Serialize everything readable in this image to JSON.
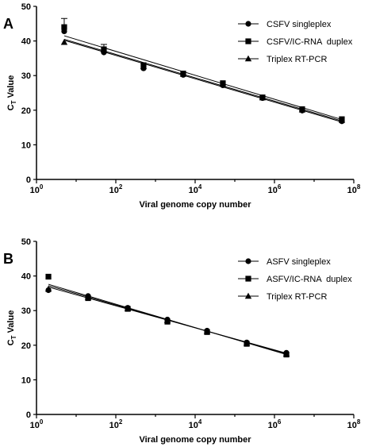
{
  "chart_data": [
    {
      "type": "scatter",
      "panel_label": "A",
      "xlabel": "Viral genome copy number",
      "ylabel_main": "C",
      "ylabel_sub": "T",
      "ylabel_rest": " Value",
      "x_scale": "log10",
      "xlim": [
        1,
        100000000
      ],
      "ylim": [
        0,
        50
      ],
      "x_ticks": [
        {
          "base": "10",
          "exp": "0",
          "value": 1
        },
        {
          "base": "10",
          "exp": "2",
          "value": 100
        },
        {
          "base": "10",
          "exp": "4",
          "value": 10000
        },
        {
          "base": "10",
          "exp": "6",
          "value": 1000000
        },
        {
          "base": "10",
          "exp": "8",
          "value": 100000000
        }
      ],
      "y_ticks": [
        "0",
        "10",
        "20",
        "30",
        "40",
        "50"
      ],
      "y_tick_values": [
        0,
        10,
        20,
        30,
        40,
        50
      ],
      "legend_position": "top-right",
      "series": [
        {
          "name": "CSFV singleplex",
          "marker": "circle",
          "x": [
            5,
            50,
            500,
            5000,
            50000,
            500000,
            5000000,
            50000000
          ],
          "y": [
            42.8,
            36.7,
            32.1,
            30.2,
            27.2,
            23.5,
            19.9,
            16.8
          ],
          "fit_x": [
            5,
            50000000
          ],
          "fit_y": [
            40.5,
            16.9
          ]
        },
        {
          "name": "CSFV/IC-RNA  duplex",
          "marker": "square",
          "x": [
            5,
            50,
            500,
            5000,
            50000,
            500000,
            5000000,
            50000000
          ],
          "y": [
            44.0,
            37.6,
            33.0,
            30.6,
            27.8,
            23.7,
            20.3,
            17.4
          ],
          "fit_x": [
            5,
            50000000
          ],
          "fit_y": [
            41.5,
            17.3
          ],
          "err_x": [
            5,
            50
          ],
          "err_y_hi": [
            46.5,
            39.0
          ]
        },
        {
          "name": "Triplex RT-PCR",
          "marker": "triangle",
          "x": [
            5,
            50,
            500,
            5000,
            50000,
            500000,
            5000000,
            50000000
          ],
          "y": [
            39.6,
            37.5,
            32.6,
            30.4,
            27.5,
            23.6,
            20.1,
            17.1
          ],
          "fit_x": [
            5,
            50000000
          ],
          "fit_y": [
            40.2,
            16.6
          ]
        }
      ]
    },
    {
      "type": "scatter",
      "panel_label": "B",
      "xlabel": "Viral genome copy number",
      "ylabel_main": "C",
      "ylabel_sub": "T",
      "ylabel_rest": " Value",
      "x_scale": "log10",
      "xlim": [
        1,
        100000000
      ],
      "ylim": [
        0,
        50
      ],
      "x_ticks": [
        {
          "base": "10",
          "exp": "0",
          "value": 1
        },
        {
          "base": "10",
          "exp": "2",
          "value": 100
        },
        {
          "base": "10",
          "exp": "4",
          "value": 10000
        },
        {
          "base": "10",
          "exp": "6",
          "value": 1000000
        },
        {
          "base": "10",
          "exp": "8",
          "value": 100000000
        }
      ],
      "y_ticks": [
        "0",
        "10",
        "20",
        "30",
        "40",
        "50"
      ],
      "y_tick_values": [
        0,
        10,
        20,
        30,
        40,
        50
      ],
      "legend_position": "top-right",
      "series": [
        {
          "name": "ASFV singleplex",
          "marker": "circle",
          "x": [
            2,
            20,
            200,
            2000,
            20000,
            200000,
            2000000
          ],
          "y": [
            35.9,
            34.2,
            30.8,
            27.4,
            24.2,
            20.8,
            17.8
          ],
          "fit_x": [
            2,
            2000000
          ],
          "fit_y": [
            36.8,
            17.7
          ]
        },
        {
          "name": "ASFV/IC-RNA  duplex",
          "marker": "square",
          "x": [
            2,
            20,
            200,
            2000,
            20000,
            200000,
            2000000
          ],
          "y": [
            39.8,
            33.6,
            30.5,
            26.8,
            23.8,
            20.4,
            17.3
          ],
          "fit_x": [
            2,
            2000000
          ],
          "fit_y": [
            37.6,
            17.3
          ]
        },
        {
          "name": "Triplex RT-PCR",
          "marker": "triangle",
          "x": [
            2,
            20,
            200,
            2000,
            20000,
            200000,
            2000000
          ],
          "y": [
            36.2,
            33.9,
            30.6,
            27.1,
            24.0,
            20.6,
            17.5
          ],
          "fit_x": [
            2,
            2000000
          ],
          "fit_y": [
            37.2,
            17.5
          ]
        }
      ]
    }
  ]
}
